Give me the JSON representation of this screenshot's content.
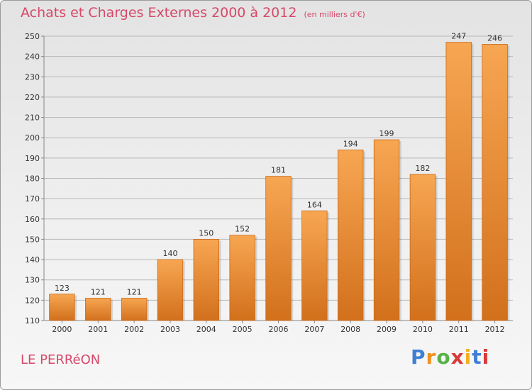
{
  "header": {
    "title": "Achats et Charges Externes 2000 à 2012",
    "unit": "(en milliers d'€)"
  },
  "footer": {
    "commune": "LE PERRéON",
    "brand_letters": [
      "P",
      "r",
      "o",
      "x",
      "i",
      "t",
      "i"
    ]
  },
  "chart_data": {
    "type": "bar",
    "categories": [
      "2000",
      "2001",
      "2002",
      "2003",
      "2004",
      "2005",
      "2006",
      "2007",
      "2008",
      "2009",
      "2010",
      "2011",
      "2012"
    ],
    "values": [
      123,
      121,
      121,
      140,
      150,
      152,
      181,
      164,
      194,
      199,
      182,
      247,
      246
    ],
    "ylim": [
      110,
      250
    ],
    "yticks": [
      110,
      120,
      130,
      140,
      150,
      160,
      170,
      180,
      190,
      200,
      210,
      220,
      230,
      240,
      250
    ],
    "grid": "horizontal",
    "bar_color": "#f5a04a",
    "bar_color_dark": "#d0701c"
  }
}
